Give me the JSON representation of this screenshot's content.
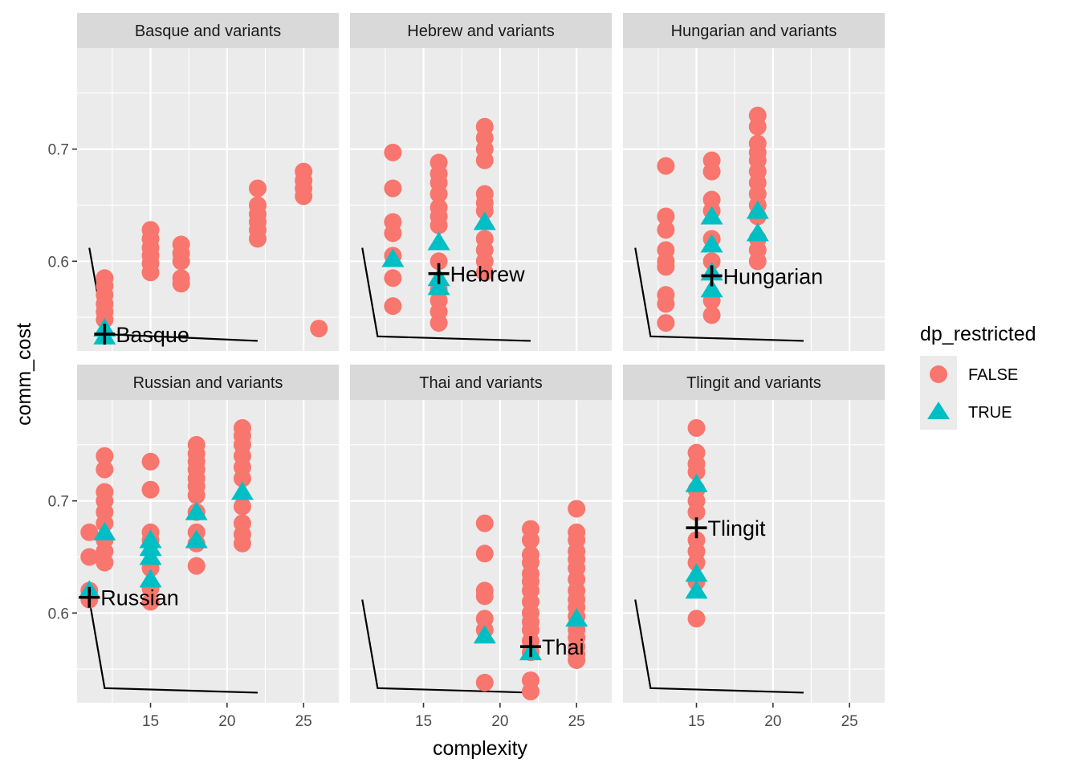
{
  "chart_data": {
    "type": "scatter",
    "xlabel": "complexity",
    "ylabel": "comm_cost",
    "xlim": [
      10.2,
      27.3
    ],
    "ylim": [
      0.52,
      0.79
    ],
    "x_ticks": [
      15,
      20,
      25
    ],
    "y_ticks": [
      0.6,
      0.7
    ],
    "x_minor": [
      12.5,
      17.5,
      22.5
    ],
    "y_minor": [
      0.55,
      0.65,
      0.75
    ],
    "grid": true,
    "legend": {
      "title": "dp_restricted",
      "position": "right",
      "entries": [
        {
          "label": "FALSE",
          "shape": "circle",
          "color": "#F8766D"
        },
        {
          "label": "TRUE",
          "shape": "triangle",
          "color": "#00BFC4"
        }
      ]
    },
    "facets": [
      {
        "title": "Basque and variants",
        "language": {
          "name": "Basque",
          "x": 12,
          "y": 0.535
        },
        "frontier": [
          [
            11,
            0.612
          ],
          [
            12,
            0.535
          ],
          [
            22,
            0.529
          ]
        ],
        "false": [
          [
            12,
            0.585
          ],
          [
            12,
            0.578
          ],
          [
            12,
            0.57
          ],
          [
            12,
            0.562
          ],
          [
            12,
            0.555
          ],
          [
            12,
            0.548
          ],
          [
            15,
            0.628
          ],
          [
            15,
            0.62
          ],
          [
            15,
            0.612
          ],
          [
            15,
            0.605
          ],
          [
            15,
            0.598
          ],
          [
            15,
            0.59
          ],
          [
            17,
            0.615
          ],
          [
            17,
            0.607
          ],
          [
            17,
            0.6
          ],
          [
            17,
            0.585
          ],
          [
            17,
            0.58
          ],
          [
            22,
            0.665
          ],
          [
            22,
            0.65
          ],
          [
            22,
            0.642
          ],
          [
            22,
            0.635
          ],
          [
            22,
            0.628
          ],
          [
            22,
            0.62
          ],
          [
            25,
            0.68
          ],
          [
            25,
            0.672
          ],
          [
            25,
            0.665
          ],
          [
            25,
            0.658
          ],
          [
            26,
            0.54
          ]
        ],
        "true": [
          [
            12,
            0.54
          ],
          [
            12,
            0.533
          ]
        ]
      },
      {
        "title": "Hebrew and variants",
        "language": {
          "name": "Hebrew",
          "x": 16,
          "y": 0.589
        },
        "frontier": [
          [
            11,
            0.612
          ],
          [
            12,
            0.533
          ],
          [
            22,
            0.529
          ]
        ],
        "false": [
          [
            13,
            0.697
          ],
          [
            13,
            0.665
          ],
          [
            13,
            0.635
          ],
          [
            13,
            0.625
          ],
          [
            13,
            0.605
          ],
          [
            13,
            0.585
          ],
          [
            13,
            0.56
          ],
          [
            16,
            0.688
          ],
          [
            16,
            0.678
          ],
          [
            16,
            0.67
          ],
          [
            16,
            0.66
          ],
          [
            16,
            0.648
          ],
          [
            16,
            0.64
          ],
          [
            16,
            0.632
          ],
          [
            16,
            0.6
          ],
          [
            16,
            0.575
          ],
          [
            16,
            0.565
          ],
          [
            16,
            0.555
          ],
          [
            16,
            0.545
          ],
          [
            19,
            0.72
          ],
          [
            19,
            0.71
          ],
          [
            19,
            0.7
          ],
          [
            19,
            0.69
          ],
          [
            19,
            0.66
          ],
          [
            19,
            0.652
          ],
          [
            19,
            0.645
          ],
          [
            19,
            0.62
          ],
          [
            19,
            0.61
          ],
          [
            19,
            0.6
          ],
          [
            19,
            0.59
          ]
        ],
        "true": [
          [
            13,
            0.602
          ],
          [
            16,
            0.617
          ],
          [
            16,
            0.585
          ],
          [
            16,
            0.577
          ],
          [
            19,
            0.635
          ]
        ]
      },
      {
        "title": "Hungarian and variants",
        "language": {
          "name": "Hungarian",
          "x": 16,
          "y": 0.587
        },
        "frontier": [
          [
            11,
            0.612
          ],
          [
            12,
            0.533
          ],
          [
            22,
            0.529
          ]
        ],
        "false": [
          [
            13,
            0.685
          ],
          [
            13,
            0.64
          ],
          [
            13,
            0.628
          ],
          [
            13,
            0.61
          ],
          [
            13,
            0.6
          ],
          [
            13,
            0.595
          ],
          [
            13,
            0.57
          ],
          [
            13,
            0.562
          ],
          [
            13,
            0.545
          ],
          [
            16,
            0.69
          ],
          [
            16,
            0.68
          ],
          [
            16,
            0.655
          ],
          [
            16,
            0.645
          ],
          [
            16,
            0.62
          ],
          [
            16,
            0.6
          ],
          [
            16,
            0.565
          ],
          [
            16,
            0.552
          ],
          [
            19,
            0.73
          ],
          [
            19,
            0.72
          ],
          [
            19,
            0.705
          ],
          [
            19,
            0.697
          ],
          [
            19,
            0.69
          ],
          [
            19,
            0.68
          ],
          [
            19,
            0.67
          ],
          [
            19,
            0.66
          ],
          [
            19,
            0.65
          ],
          [
            19,
            0.64
          ],
          [
            19,
            0.62
          ],
          [
            19,
            0.61
          ],
          [
            19,
            0.6
          ]
        ],
        "true": [
          [
            16,
            0.64
          ],
          [
            16,
            0.615
          ],
          [
            16,
            0.59
          ],
          [
            16,
            0.575
          ],
          [
            19,
            0.645
          ],
          [
            19,
            0.625
          ]
        ]
      },
      {
        "title": "Russian and variants",
        "language": {
          "name": "Russian",
          "x": 11,
          "y": 0.614
        },
        "frontier": [
          [
            11,
            0.612
          ],
          [
            12,
            0.533
          ],
          [
            22,
            0.529
          ]
        ],
        "false": [
          [
            11,
            0.672
          ],
          [
            11,
            0.65
          ],
          [
            11,
            0.62
          ],
          [
            11,
            0.612
          ],
          [
            12,
            0.74
          ],
          [
            12,
            0.728
          ],
          [
            12,
            0.708
          ],
          [
            12,
            0.7
          ],
          [
            12,
            0.69
          ],
          [
            12,
            0.68
          ],
          [
            12,
            0.665
          ],
          [
            12,
            0.655
          ],
          [
            12,
            0.645
          ],
          [
            15,
            0.735
          ],
          [
            15,
            0.71
          ],
          [
            15,
            0.672
          ],
          [
            15,
            0.665
          ],
          [
            15,
            0.64
          ],
          [
            15,
            0.622
          ],
          [
            15,
            0.61
          ],
          [
            18,
            0.75
          ],
          [
            18,
            0.742
          ],
          [
            18,
            0.735
          ],
          [
            18,
            0.728
          ],
          [
            18,
            0.72
          ],
          [
            18,
            0.713
          ],
          [
            18,
            0.705
          ],
          [
            18,
            0.69
          ],
          [
            18,
            0.672
          ],
          [
            18,
            0.662
          ],
          [
            18,
            0.642
          ],
          [
            21,
            0.765
          ],
          [
            21,
            0.758
          ],
          [
            21,
            0.75
          ],
          [
            21,
            0.74
          ],
          [
            21,
            0.73
          ],
          [
            21,
            0.72
          ],
          [
            21,
            0.695
          ],
          [
            21,
            0.68
          ],
          [
            21,
            0.67
          ],
          [
            21,
            0.662
          ]
        ],
        "true": [
          [
            11,
            0.62
          ],
          [
            12,
            0.672
          ],
          [
            15,
            0.665
          ],
          [
            15,
            0.658
          ],
          [
            15,
            0.65
          ],
          [
            15,
            0.63
          ],
          [
            18,
            0.69
          ],
          [
            18,
            0.665
          ],
          [
            21,
            0.708
          ]
        ]
      },
      {
        "title": "Thai and variants",
        "language": {
          "name": "Thai",
          "x": 22,
          "y": 0.57
        },
        "frontier": [
          [
            11,
            0.612
          ],
          [
            12,
            0.533
          ],
          [
            22,
            0.529
          ]
        ],
        "false": [
          [
            19,
            0.68
          ],
          [
            19,
            0.653
          ],
          [
            19,
            0.62
          ],
          [
            19,
            0.615
          ],
          [
            19,
            0.595
          ],
          [
            19,
            0.585
          ],
          [
            19,
            0.538
          ],
          [
            22,
            0.675
          ],
          [
            22,
            0.665
          ],
          [
            22,
            0.652
          ],
          [
            22,
            0.645
          ],
          [
            22,
            0.635
          ],
          [
            22,
            0.628
          ],
          [
            22,
            0.62
          ],
          [
            22,
            0.61
          ],
          [
            22,
            0.6
          ],
          [
            22,
            0.592
          ],
          [
            22,
            0.585
          ],
          [
            22,
            0.575
          ],
          [
            22,
            0.565
          ],
          [
            22,
            0.54
          ],
          [
            22,
            0.53
          ],
          [
            25,
            0.693
          ],
          [
            25,
            0.672
          ],
          [
            25,
            0.665
          ],
          [
            25,
            0.655
          ],
          [
            25,
            0.648
          ],
          [
            25,
            0.64
          ],
          [
            25,
            0.63
          ],
          [
            25,
            0.62
          ],
          [
            25,
            0.612
          ],
          [
            25,
            0.605
          ],
          [
            25,
            0.597
          ],
          [
            25,
            0.585
          ],
          [
            25,
            0.578
          ],
          [
            25,
            0.57
          ],
          [
            25,
            0.563
          ],
          [
            25,
            0.558
          ]
        ],
        "true": [
          [
            19,
            0.58
          ],
          [
            22,
            0.565
          ],
          [
            25,
            0.595
          ]
        ]
      },
      {
        "title": "Tlingit and variants",
        "language": {
          "name": "Tlingit",
          "x": 15,
          "y": 0.676
        },
        "frontier": [
          [
            11,
            0.612
          ],
          [
            12,
            0.533
          ],
          [
            22,
            0.529
          ]
        ],
        "false": [
          [
            15,
            0.765
          ],
          [
            15,
            0.743
          ],
          [
            15,
            0.733
          ],
          [
            15,
            0.726
          ],
          [
            15,
            0.71
          ],
          [
            15,
            0.7
          ],
          [
            15,
            0.69
          ],
          [
            15,
            0.665
          ],
          [
            15,
            0.655
          ],
          [
            15,
            0.645
          ],
          [
            15,
            0.628
          ],
          [
            15,
            0.595
          ]
        ],
        "true": [
          [
            15,
            0.715
          ],
          [
            15,
            0.635
          ],
          [
            15,
            0.62
          ]
        ]
      }
    ]
  }
}
